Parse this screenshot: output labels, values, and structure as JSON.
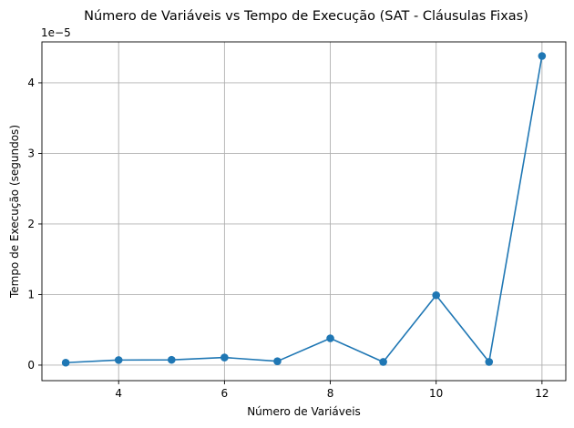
{
  "chart_data": {
    "type": "line",
    "title": "Número de Variáveis vs Tempo de Execução (SAT - Cláusulas Fixas)",
    "xlabel": "Número de Variáveis",
    "ylabel": "Tempo de Execução (segundos)",
    "y_offset_label": "1e−5",
    "x": [
      3,
      4,
      5,
      6,
      7,
      8,
      9,
      10,
      11,
      12
    ],
    "series": [
      {
        "values": [
          0.35,
          0.72,
          0.75,
          1.08,
          0.55,
          3.8,
          0.45,
          9.9,
          0.45,
          43.8
        ],
        "color": "#1f77b4",
        "marker": "circle"
      }
    ],
    "value_scale": 1e-06,
    "xlim": [
      2.55,
      12.45
    ],
    "ylim": [
      -2.2,
      45.8
    ],
    "xticks": [
      4,
      6,
      8,
      10,
      12
    ],
    "xtick_labels": [
      "4",
      "6",
      "8",
      "10",
      "12"
    ],
    "yticks": [
      0,
      10,
      20,
      30,
      40
    ],
    "ytick_labels": [
      "0",
      "1",
      "2",
      "3",
      "4"
    ],
    "grid": true
  }
}
